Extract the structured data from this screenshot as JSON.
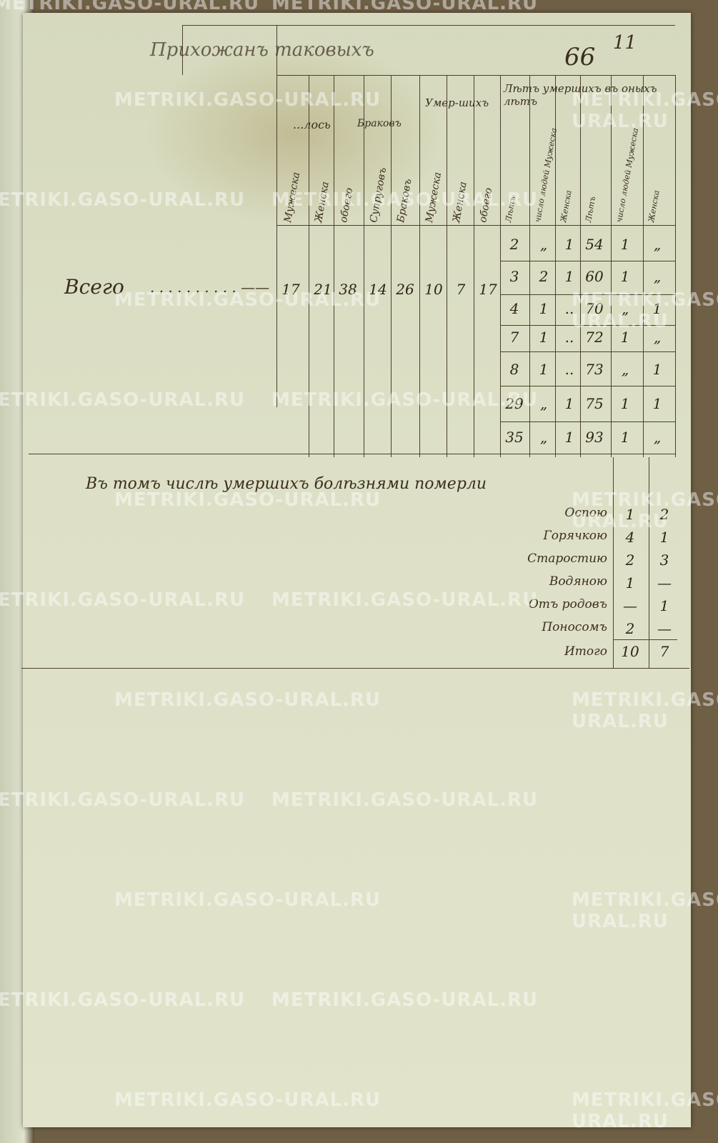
{
  "page": {
    "folio": "66",
    "sheet": "11",
    "title": "Прихожанъ таковыхъ"
  },
  "headers": {
    "group_born": "...лось",
    "group_married": "Браковъ",
    "group_died": "Умер-шихъ",
    "group_ages": "Лѣтъ умершихъ въ оныхъ лѣтъ",
    "columns": [
      "Мужеска",
      "Женска",
      "обоего",
      "Супруговъ",
      "Браковъ",
      "Мужеска",
      "Женска",
      "обоего"
    ],
    "age_cols": [
      "Лѣтъ",
      "число людей Мужеска",
      "Женска",
      "Лѣтъ",
      "число людей Мужеска",
      "Женска"
    ]
  },
  "total": {
    "label": "Всего",
    "values": [
      "17",
      "21",
      "38",
      "14",
      "26",
      "10",
      "7",
      "17"
    ]
  },
  "ages": [
    [
      "2",
      "„",
      "1",
      "54",
      "1",
      "„"
    ],
    [
      "3",
      "2",
      "1",
      "60",
      "1",
      "„"
    ],
    [
      "4",
      "1",
      "..",
      "70",
      "„",
      "1"
    ],
    [
      "7",
      "1",
      "..",
      "72",
      "1",
      "„"
    ],
    [
      "8",
      "1",
      "..",
      "73",
      "„",
      "1"
    ],
    [
      "29",
      "„",
      "1",
      "75",
      "1",
      "1"
    ],
    [
      "35",
      "„",
      "1",
      "93",
      "1",
      "„"
    ]
  ],
  "diseases": {
    "heading": "Въ томъ числѣ умершихъ болѣзнями померли",
    "items": [
      {
        "name": "Оспою",
        "m": "1",
        "f": "2"
      },
      {
        "name": "Горячкою",
        "m": "4",
        "f": "1"
      },
      {
        "name": "Старостию",
        "m": "2",
        "f": "3"
      },
      {
        "name": "Водяною",
        "m": "1",
        "f": "—"
      },
      {
        "name": "Отъ родовъ",
        "m": "—",
        "f": "1"
      },
      {
        "name": "Поносомъ",
        "m": "2",
        "f": "—"
      }
    ],
    "total": {
      "name": "Итого",
      "m": "10",
      "f": "7"
    }
  },
  "watermark": "METRIKI.GASO-URAL.RU"
}
